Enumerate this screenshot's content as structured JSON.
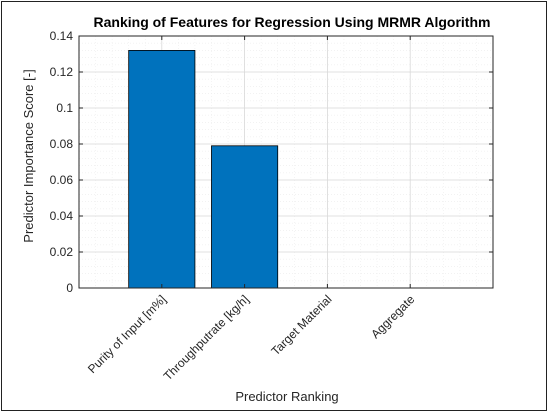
{
  "chart_data": {
    "type": "bar",
    "title": "Ranking of Features for Regression Using MRMR Algorithm",
    "xlabel": "Predictor Ranking",
    "ylabel": "Predictor Importance Score [-]",
    "categories": [
      "Purity of Input [m%]",
      "Throughputrate [kg/h]",
      "Target Material",
      "Aggregate"
    ],
    "values": [
      0.132,
      0.079,
      0,
      0
    ],
    "ylim": [
      0,
      0.14
    ],
    "yticks": [
      0,
      0.02,
      0.04,
      0.06,
      0.08,
      0.1,
      0.12,
      0.14
    ],
    "ytick_labels": [
      "0",
      "0.02",
      "0.04",
      "0.06",
      "0.08",
      "0.1",
      "0.12",
      "0.14"
    ],
    "grid": true,
    "minor_grid": true,
    "bar_color": "#0072BD",
    "grid_color": "#d9d9d9"
  }
}
